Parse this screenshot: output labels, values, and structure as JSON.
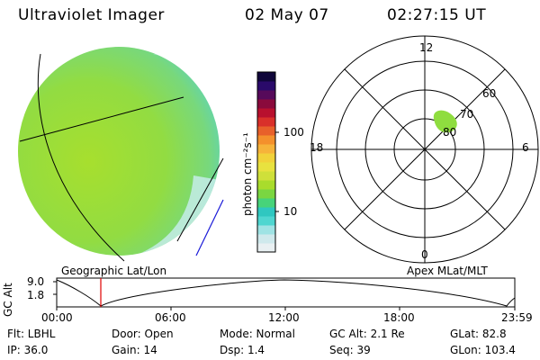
{
  "header": {
    "instrument": "Ultraviolet Imager",
    "date": "02 May 07",
    "time": "02:27:15 UT"
  },
  "colorbar": {
    "unit_label": "photon cm⁻²s⁻¹",
    "tick_100": "100",
    "tick_10": "10",
    "colors": [
      "#e9f0f2",
      "#cfe9ec",
      "#9fe3e4",
      "#4fd6d0",
      "#2fc7c0",
      "#47d37a",
      "#7ad641",
      "#a9dc2c",
      "#cfe03a",
      "#e8e23f",
      "#f1d23a",
      "#f6b33a",
      "#f4902c",
      "#e8602a",
      "#d9302a",
      "#b8102e",
      "#8a0a3c",
      "#560a5a",
      "#2a0a6a",
      "#10063a"
    ]
  },
  "left_panel": {
    "label": "Geographic Lat/Lon",
    "disk_fill": "#97de3a",
    "edge_fill": "#6fd6b8"
  },
  "right_panel": {
    "label": "Apex MLat/MLT",
    "mlt_labels": {
      "top": "12",
      "bottom": "0",
      "left": "18",
      "right": "6"
    },
    "lat_labels": [
      "60",
      "70",
      "80"
    ],
    "blob_fill": "#8fdd3f"
  },
  "alt_plot": {
    "axis_title": "GC Alt",
    "y_max": "9.0",
    "y_min": "1.8",
    "x_ticks": [
      "00:00",
      "06:00",
      "12:00",
      "18:00",
      "23:59"
    ],
    "marker_color": "#e00000"
  },
  "footer": {
    "flt": "Flt: LBHL",
    "ip": "IP: 36.0",
    "door": "Door: Open",
    "gain": "Gain: 14",
    "mode": "Mode: Normal",
    "dsp": "Dsp:    1.4",
    "gcalt": "GC Alt: 2.1 Re",
    "seq": "Seq: 39",
    "glat": "GLat:  82.8",
    "glon": "GLon: 103.4"
  }
}
